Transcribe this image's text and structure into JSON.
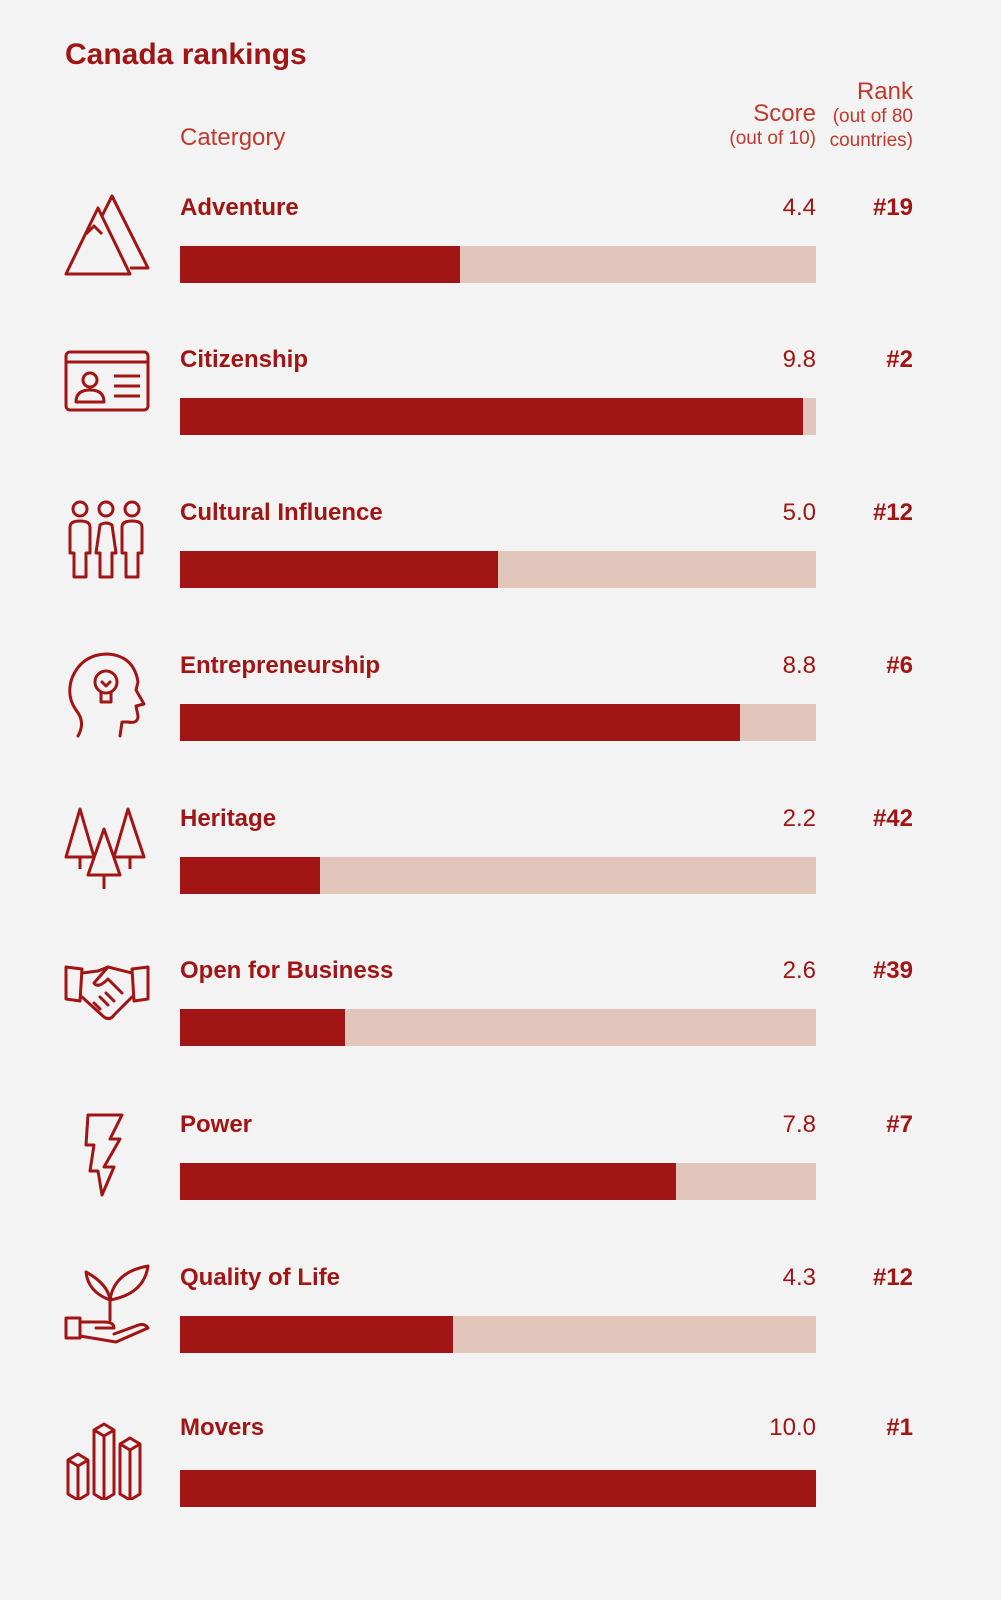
{
  "header": {
    "title": "Canada rankings",
    "category_label": "Catergory",
    "score_label": "Score",
    "score_sub": "(out of 10)",
    "rank_label": "Rank",
    "rank_sub_1": "(out of 80",
    "rank_sub_2": "countries)"
  },
  "colors": {
    "bar_fill": "#a11515",
    "bar_track": "#e2c5bb",
    "background": "#f3f3f3"
  },
  "chart_data": {
    "type": "bar",
    "title": "Canada rankings",
    "xlim": [
      0,
      10
    ],
    "categories": [
      "Adventure",
      "Citizenship",
      "Cultural Influence",
      "Entrepreneurship",
      "Heritage",
      "Open for Business",
      "Power",
      "Quality of Life",
      "Movers"
    ],
    "values": [
      4.4,
      9.8,
      5.0,
      8.8,
      2.2,
      2.6,
      7.8,
      4.3,
      10.0
    ],
    "rows": [
      {
        "category": "Adventure",
        "icon": "mountains-icon",
        "score": "4.4",
        "value": 4.4,
        "rank": "#19"
      },
      {
        "category": "Citizenship",
        "icon": "id-card-icon",
        "score": "9.8",
        "value": 9.8,
        "rank": "#2"
      },
      {
        "category": "Cultural Influence",
        "icon": "people-group-icon",
        "score": "5.0",
        "value": 5.0,
        "rank": "#12"
      },
      {
        "category": "Entrepreneurship",
        "icon": "head-lightbulb-icon",
        "score": "8.8",
        "value": 8.8,
        "rank": "#6"
      },
      {
        "category": "Heritage",
        "icon": "trees-icon",
        "score": "2.2",
        "value": 2.2,
        "rank": "#42"
      },
      {
        "category": "Open for Business",
        "icon": "handshake-icon",
        "score": "2.6",
        "value": 2.6,
        "rank": "#39"
      },
      {
        "category": "Power",
        "icon": "lightning-icon",
        "score": "7.8",
        "value": 7.8,
        "rank": "#7"
      },
      {
        "category": "Quality of Life",
        "icon": "hand-plant-icon",
        "score": "4.3",
        "value": 4.3,
        "rank": "#12"
      },
      {
        "category": "Movers",
        "icon": "bar-blocks-icon",
        "score": "10.0",
        "value": 10.0,
        "rank": "#1"
      }
    ]
  }
}
